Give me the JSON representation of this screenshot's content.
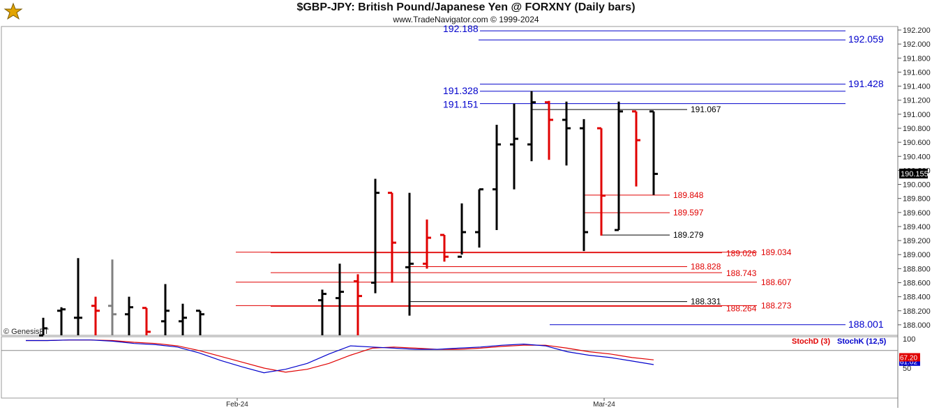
{
  "header": {
    "title": "$GBP-JPY:  British Pound/Japanese Yen @ FORXNY  (Daily bars)",
    "subtitle": "www.TradeNavigator.com © 1999-2024"
  },
  "watermark": "© GenesisFT",
  "logo_icon": "genesis-logo-icon",
  "colors": {
    "up": "#000000",
    "down": "#e00000",
    "ghost": "#808080",
    "blue": "#0000cc",
    "red_line": "#e00000",
    "stoch_d": "#e00000",
    "stoch_k": "#0000cc"
  },
  "chart_data": [
    {
      "type": "ohlc",
      "ylim": [
        187.85,
        192.25
      ],
      "yticks": [
        "192.200",
        "192.000",
        "191.800",
        "191.600",
        "191.400",
        "191.200",
        "191.000",
        "190.800",
        "190.600",
        "190.400",
        "190.200",
        "190.000",
        "189.800",
        "189.600",
        "189.400",
        "189.200",
        "189.000",
        "188.800",
        "188.600",
        "188.400",
        "188.200",
        "188.000"
      ],
      "last_price": "190.155",
      "xlabels": [
        "Feb-24",
        "Mar-24"
      ],
      "bars": [
        {
          "o": 187.85,
          "h": 188.1,
          "l": 187.85,
          "c": 187.95,
          "color": "up"
        },
        {
          "o": 188.2,
          "h": 188.25,
          "l": 187.85,
          "c": 188.22,
          "color": "up"
        },
        {
          "o": 188.1,
          "h": 188.95,
          "l": 187.85,
          "c": 188.1,
          "color": "up"
        },
        {
          "o": 188.27,
          "h": 188.4,
          "l": 187.85,
          "c": 188.2,
          "color": "down"
        },
        {
          "o": 188.27,
          "h": 188.93,
          "l": 187.85,
          "c": 188.15,
          "color": "ghost"
        },
        {
          "o": 188.15,
          "h": 188.4,
          "l": 187.85,
          "c": 188.25,
          "color": "up"
        },
        {
          "o": 188.24,
          "h": 188.24,
          "l": 187.85,
          "c": 187.9,
          "color": "down"
        },
        {
          "o": 188.05,
          "h": 188.58,
          "l": 187.85,
          "c": 188.2,
          "color": "up"
        },
        {
          "o": 188.05,
          "h": 188.3,
          "l": 187.85,
          "c": 188.1,
          "color": "up"
        },
        {
          "o": 188.2,
          "h": 188.2,
          "l": 187.85,
          "c": 188.15,
          "color": "up"
        },
        {
          "o": 188.35,
          "h": 188.5,
          "l": 187.85,
          "c": 188.44,
          "color": "up"
        },
        {
          "o": 188.38,
          "h": 188.87,
          "l": 187.85,
          "c": 188.47,
          "color": "up"
        },
        {
          "o": 188.62,
          "h": 188.72,
          "l": 187.85,
          "c": 188.41,
          "color": "down"
        },
        {
          "o": 188.6,
          "h": 190.08,
          "l": 188.45,
          "c": 189.88,
          "color": "up"
        },
        {
          "o": 189.88,
          "h": 189.88,
          "l": 188.6,
          "c": 189.17,
          "color": "down"
        },
        {
          "o": 188.82,
          "h": 189.88,
          "l": 188.13,
          "c": 188.87,
          "color": "up"
        },
        {
          "o": 188.87,
          "h": 189.5,
          "l": 188.8,
          "c": 189.24,
          "color": "down"
        },
        {
          "o": 189.28,
          "h": 189.28,
          "l": 188.9,
          "c": 188.97,
          "color": "down"
        },
        {
          "o": 188.97,
          "h": 189.73,
          "l": 189.0,
          "c": 189.32,
          "color": "up"
        },
        {
          "o": 189.32,
          "h": 189.93,
          "l": 189.1,
          "c": 189.93,
          "color": "up"
        },
        {
          "o": 189.93,
          "h": 190.85,
          "l": 189.35,
          "c": 190.57,
          "color": "up"
        },
        {
          "o": 190.57,
          "h": 191.15,
          "l": 189.93,
          "c": 190.65,
          "color": "up"
        },
        {
          "o": 190.57,
          "h": 191.33,
          "l": 190.33,
          "c": 191.17,
          "color": "up"
        },
        {
          "o": 191.17,
          "h": 191.19,
          "l": 190.35,
          "c": 190.92,
          "color": "down"
        },
        {
          "o": 190.92,
          "h": 191.18,
          "l": 190.27,
          "c": 190.8,
          "color": "up"
        },
        {
          "o": 190.8,
          "h": 190.93,
          "l": 189.05,
          "c": 189.32,
          "color": "up"
        },
        {
          "o": 190.8,
          "h": 190.8,
          "l": 189.27,
          "c": 189.84,
          "color": "down"
        },
        {
          "o": 189.35,
          "h": 191.18,
          "l": 189.35,
          "c": 191.04,
          "color": "up"
        },
        {
          "o": 191.04,
          "h": 191.04,
          "l": 189.97,
          "c": 190.63,
          "color": "down"
        },
        {
          "o": 191.04,
          "h": 191.04,
          "l": 189.85,
          "c": 190.15,
          "color": "up"
        }
      ],
      "levels": [
        {
          "value": 192.188,
          "label": "192.188",
          "side": "left",
          "color": "blue"
        },
        {
          "value": 192.059,
          "label": "192.059",
          "side": "right",
          "color": "blue"
        },
        {
          "value": 191.428,
          "label": "191.428",
          "side": "right",
          "color": "blue"
        },
        {
          "value": 191.328,
          "label": "191.328",
          "side": "left",
          "color": "blue"
        },
        {
          "value": 191.151,
          "label": "191.151",
          "side": "left",
          "color": "blue"
        },
        {
          "value": 191.067,
          "label": "191.067",
          "side": "inner",
          "color": "black"
        },
        {
          "value": 189.848,
          "label": "189.848",
          "side": "inner",
          "color": "red"
        },
        {
          "value": 189.597,
          "label": "189.597",
          "side": "inner",
          "color": "red"
        },
        {
          "value": 189.279,
          "label": "189.279",
          "side": "inner",
          "color": "black"
        },
        {
          "value": 189.034,
          "label": "189.034",
          "side": "inner2",
          "color": "red"
        },
        {
          "value": 189.026,
          "label": "189.026",
          "side": "inner",
          "color": "red"
        },
        {
          "value": 188.828,
          "label": "188.828",
          "side": "inner",
          "color": "red"
        },
        {
          "value": 188.743,
          "label": "188.743",
          "side": "inner",
          "color": "red"
        },
        {
          "value": 188.607,
          "label": "188.607",
          "side": "inner",
          "color": "red"
        },
        {
          "value": 188.331,
          "label": "188.331",
          "side": "inner",
          "color": "black"
        },
        {
          "value": 188.273,
          "label": "188.273",
          "side": "inner2",
          "color": "red"
        },
        {
          "value": 188.264,
          "label": "188.264",
          "side": "inner",
          "color": "red"
        },
        {
          "value": 188.001,
          "label": "188.001",
          "side": "right",
          "color": "blue"
        }
      ]
    },
    {
      "type": "line",
      "name": "stochastic",
      "ylim": [
        0,
        100
      ],
      "yticks": [
        "100",
        "50"
      ],
      "legend_d": "StochD (3)",
      "legend_k": "StochK (12,5)",
      "last_d": "67.20",
      "last_k": "61.02",
      "reference": 80,
      "series": [
        {
          "name": "StochD (3)",
          "color": "stoch_d",
          "values": [
            97,
            97,
            98,
            98,
            97,
            94,
            92,
            88,
            80,
            70,
            60,
            50,
            43,
            48,
            58,
            72,
            84,
            86,
            84,
            82,
            82,
            84,
            87,
            89,
            89,
            84,
            78,
            74,
            68,
            64
          ]
        },
        {
          "name": "StochK (12,5)",
          "color": "stoch_k",
          "values": [
            97,
            97,
            98,
            98,
            96,
            92,
            90,
            86,
            76,
            63,
            52,
            42,
            48,
            58,
            74,
            88,
            86,
            84,
            82,
            82,
            84,
            86,
            89,
            91,
            88,
            78,
            72,
            68,
            62,
            56
          ]
        }
      ]
    }
  ]
}
